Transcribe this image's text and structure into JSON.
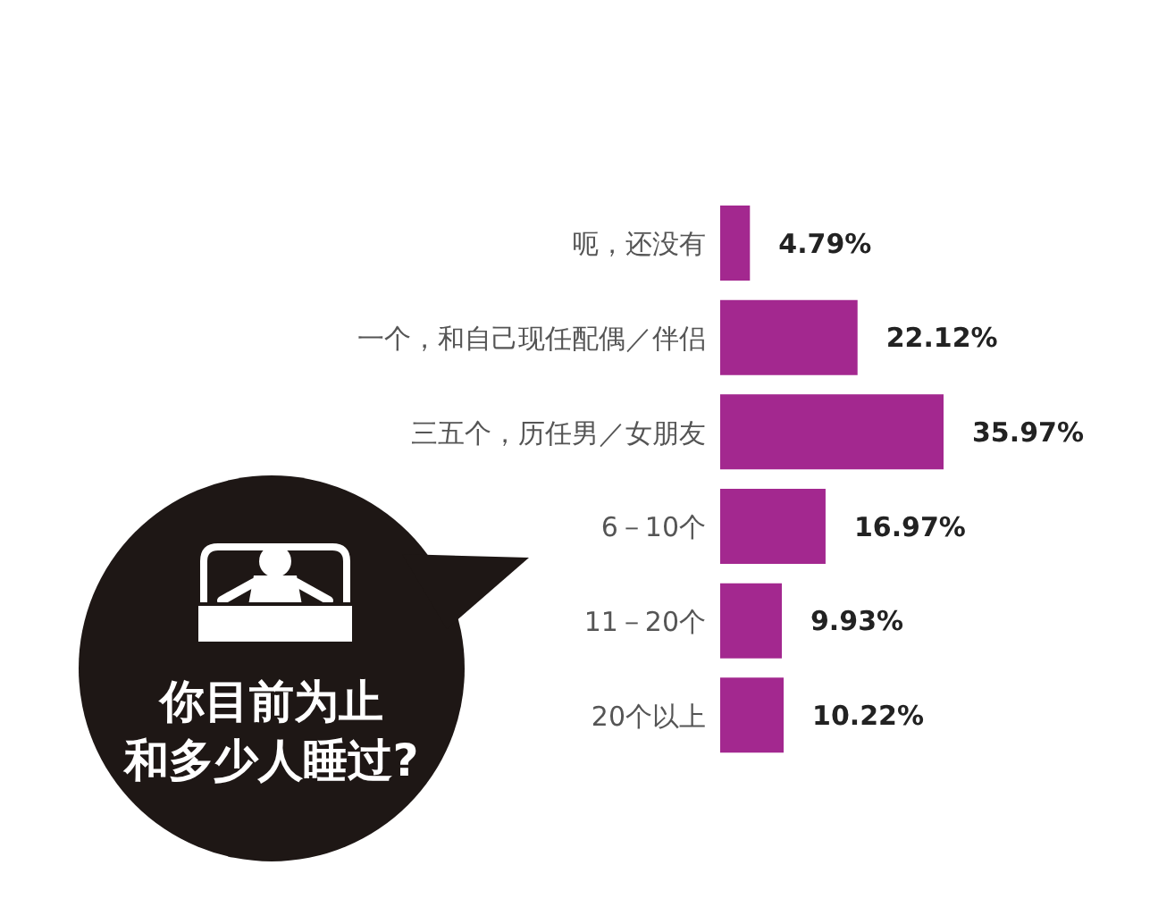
{
  "chart_data": {
    "type": "bar",
    "orientation": "horizontal",
    "title": "你目前为止和多少人睡过?",
    "categories": [
      "呃，还没有",
      "一个，和自己现任配偶／伴侣",
      "三五个，历任男／女朋友",
      "6－10个",
      "11－20个",
      "20个以上"
    ],
    "values": [
      4.79,
      22.12,
      35.97,
      16.97,
      9.93,
      10.22
    ],
    "value_labels": [
      "4.79%",
      "22.12%",
      "35.97%",
      "16.97%",
      "9.93%",
      "10.22%"
    ],
    "color": "#a3288f",
    "grid": false,
    "legend": false
  }
}
